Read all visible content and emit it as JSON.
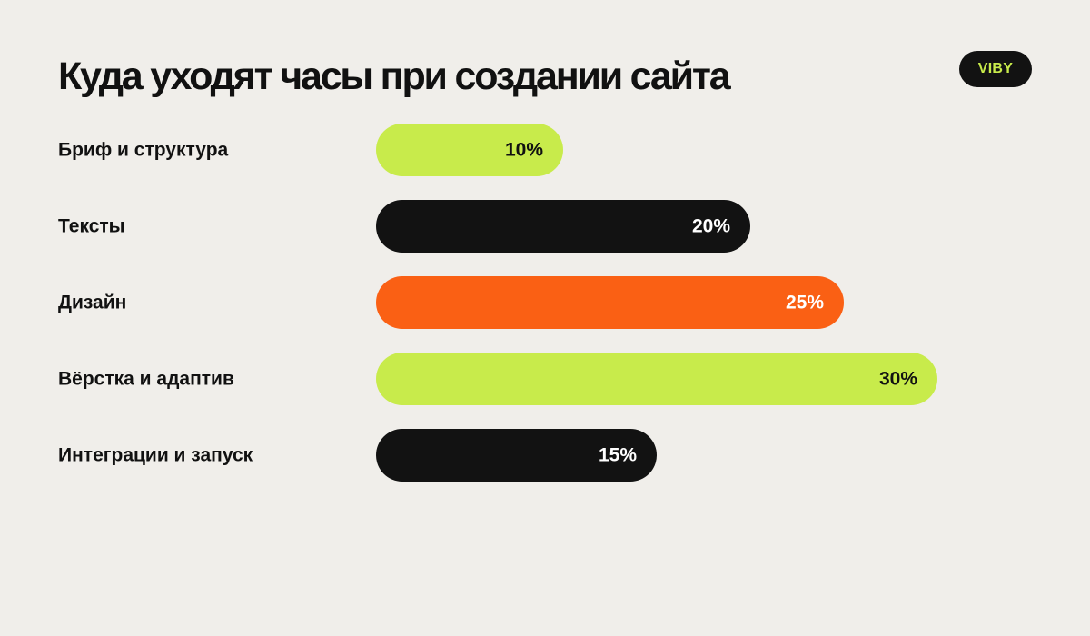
{
  "title": "Куда уходят часы при создании сайта",
  "brand": "VIBY",
  "chart_data": {
    "type": "bar",
    "orientation": "horizontal",
    "categories": [
      "Бриф и структура",
      "Тексты",
      "Дизайн",
      "Вёрстка и адаптив",
      "Интеграции и запуск"
    ],
    "values": [
      10,
      20,
      25,
      30,
      15
    ],
    "value_labels": [
      "10%",
      "20%",
      "25%",
      "30%",
      "15%"
    ],
    "unit": "%",
    "bar_colors": [
      "#C8EB4B",
      "#121212",
      "#FA6014",
      "#C8EB4B",
      "#121212"
    ],
    "value_label_colors": [
      "#111111",
      "#FFFFFF",
      "#FFFFFF",
      "#111111",
      "#FFFFFF"
    ],
    "xlim": [
      0,
      30
    ],
    "title": "Куда уходят часы при создании сайта",
    "xlabel": "",
    "ylabel": "",
    "grid": false,
    "legend": "none"
  },
  "colors": {
    "background": "#F0EEEA",
    "text": "#111111",
    "lime": "#C8EB4B",
    "black": "#121212",
    "orange": "#FA6014"
  }
}
